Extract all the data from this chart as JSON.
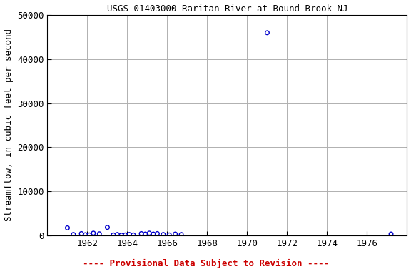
{
  "title": "USGS 01403000 Raritan River at Bound Brook NJ",
  "ylabel": "Streamflow, in cubic feet per second",
  "xlabel_note": "---- Provisional Data Subject to Revision ----",
  "xlim": [
    1960,
    1978
  ],
  "ylim": [
    0,
    50000
  ],
  "yticks": [
    0,
    10000,
    20000,
    30000,
    40000,
    50000
  ],
  "xticks": [
    1962,
    1964,
    1966,
    1968,
    1970,
    1972,
    1974,
    1976
  ],
  "data_x": [
    1961.0,
    1961.3,
    1961.7,
    1961.9,
    1962.1,
    1962.3,
    1962.6,
    1963.0,
    1963.3,
    1963.5,
    1963.7,
    1963.9,
    1964.1,
    1964.3,
    1964.7,
    1964.9,
    1965.1,
    1965.3,
    1965.5,
    1965.8,
    1966.1,
    1966.4,
    1966.7,
    1971.0,
    1977.2
  ],
  "data_y": [
    1700,
    200,
    400,
    150,
    100,
    500,
    350,
    1800,
    100,
    200,
    50,
    100,
    200,
    100,
    400,
    300,
    500,
    300,
    400,
    200,
    100,
    300,
    200,
    46000,
    300
  ],
  "marker_color": "#0000cc",
  "marker_size": 4,
  "marker_lw": 1.0,
  "grid_color": "#b0b0b0",
  "bg_color": "#ffffff",
  "title_fontsize": 9,
  "tick_fontsize": 9,
  "label_fontsize": 9,
  "note_color": "#cc0000",
  "note_fontsize": 9
}
